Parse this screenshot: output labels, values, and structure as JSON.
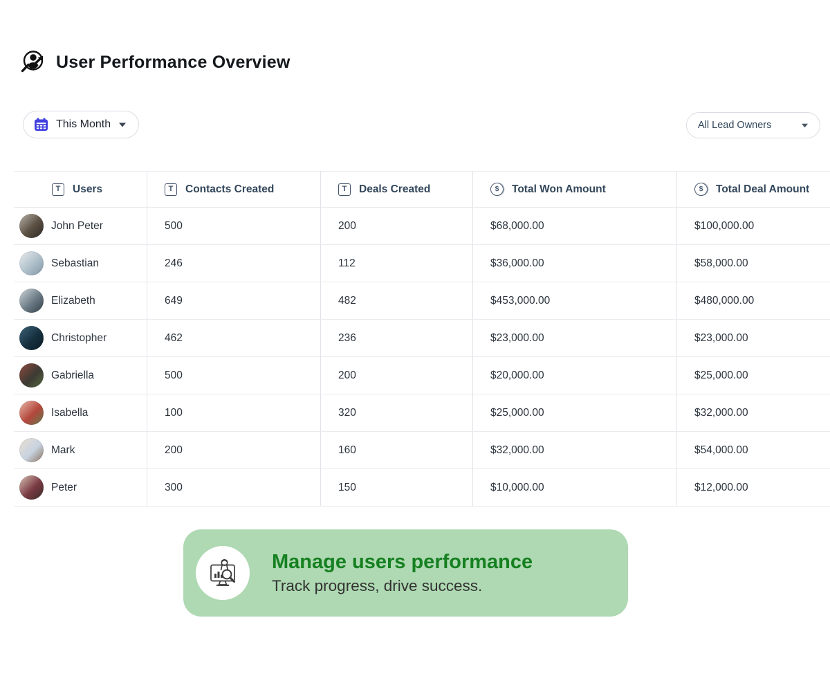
{
  "page": {
    "title": "User Performance Overview"
  },
  "filters": {
    "date_filter": {
      "label": "This Month"
    },
    "owner_filter": {
      "label": "All Lead Owners"
    }
  },
  "table": {
    "columns": [
      {
        "label": "Users",
        "icon": "text-type-icon"
      },
      {
        "label": "Contacts Created",
        "icon": "text-type-icon"
      },
      {
        "label": "Deals Created",
        "icon": "text-type-icon"
      },
      {
        "label": "Total Won Amount",
        "icon": "currency-icon"
      },
      {
        "label": "Total Deal Amount",
        "icon": "currency-icon"
      }
    ],
    "rows": [
      {
        "user": "John Peter",
        "avatar_colors": [
          "#b9b3a9",
          "#5a4f41",
          "#2e2a25"
        ],
        "contacts_created": "500",
        "deals_created": "200",
        "total_won_amount": "$68,000.00",
        "total_deal_amount": "$100,000.00"
      },
      {
        "user": "Sebastian",
        "avatar_colors": [
          "#e8ecef",
          "#aebfc9",
          "#7e95a5"
        ],
        "contacts_created": "246",
        "deals_created": "112",
        "total_won_amount": "$36,000.00",
        "total_deal_amount": "$58,000.00"
      },
      {
        "user": "Elizabeth",
        "avatar_colors": [
          "#cfd6da",
          "#6b7b85",
          "#323e46"
        ],
        "contacts_created": "649",
        "deals_created": "482",
        "total_won_amount": "$453,000.00",
        "total_deal_amount": "$480,000.00"
      },
      {
        "user": "Christopher",
        "avatar_colors": [
          "#3e6378",
          "#16303f",
          "#0b1b26"
        ],
        "contacts_created": "462",
        "deals_created": "236",
        "total_won_amount": "$23,000.00",
        "total_deal_amount": "$23,000.00"
      },
      {
        "user": "Gabriella",
        "avatar_colors": [
          "#8f4a3e",
          "#3c3a33",
          "#56683f"
        ],
        "contacts_created": "500",
        "deals_created": "200",
        "total_won_amount": "$20,000.00",
        "total_deal_amount": "$25,000.00"
      },
      {
        "user": "Isabella",
        "avatar_colors": [
          "#e8b9a8",
          "#b4473d",
          "#5f7a4a"
        ],
        "contacts_created": "100",
        "deals_created": "320",
        "total_won_amount": "$25,000.00",
        "total_deal_amount": "$32,000.00"
      },
      {
        "user": "Mark",
        "avatar_colors": [
          "#eadfd2",
          "#c7d3e0",
          "#8a6f5c"
        ],
        "contacts_created": "200",
        "deals_created": "160",
        "total_won_amount": "$32,000.00",
        "total_deal_amount": "$54,000.00"
      },
      {
        "user": "Peter",
        "avatar_colors": [
          "#d8c4b4",
          "#7a3b44",
          "#3a2a28"
        ],
        "contacts_created": "300",
        "deals_created": "150",
        "total_won_amount": "$10,000.00",
        "total_deal_amount": "$12,000.00"
      }
    ]
  },
  "banner": {
    "title": "Manage users performance",
    "subtitle": "Track progress, drive success."
  },
  "colors": {
    "calendar_icon": "#4040e0",
    "banner_bg": "#aed9b2",
    "banner_title": "#168021",
    "header_text": "#33475b"
  }
}
